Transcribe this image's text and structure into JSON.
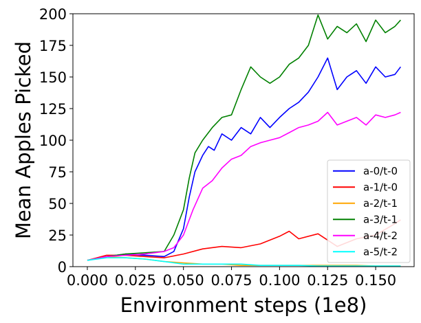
{
  "chart_data": {
    "type": "line",
    "title": "",
    "xlabel": "Environment steps (1e8)",
    "ylabel": "Mean Apples Picked",
    "xlim": [
      -0.0075,
      0.17
    ],
    "ylim": [
      0,
      200
    ],
    "xticks": [
      0.0,
      0.025,
      0.05,
      0.075,
      0.1,
      0.125,
      0.15
    ],
    "xtick_labels": [
      "0.000",
      "0.025",
      "0.050",
      "0.075",
      "0.100",
      "0.125",
      "0.150"
    ],
    "yticks": [
      0,
      25,
      50,
      75,
      100,
      125,
      150,
      175,
      200
    ],
    "ytick_labels": [
      "0",
      "25",
      "50",
      "75",
      "100",
      "125",
      "150",
      "175",
      "200"
    ],
    "grid": false,
    "legend_position": "lower-right",
    "series": [
      {
        "name": "a-0/t-0",
        "color": "#0000ff",
        "x": [
          0.0,
          0.01,
          0.02,
          0.03,
          0.04,
          0.045,
          0.05,
          0.053,
          0.056,
          0.06,
          0.063,
          0.066,
          0.07,
          0.075,
          0.08,
          0.085,
          0.09,
          0.095,
          0.1,
          0.105,
          0.11,
          0.115,
          0.12,
          0.125,
          0.13,
          0.135,
          0.14,
          0.145,
          0.15,
          0.155,
          0.16,
          0.163
        ],
        "y": [
          5,
          8,
          10,
          9,
          8,
          12,
          30,
          55,
          75,
          88,
          95,
          92,
          105,
          100,
          110,
          105,
          118,
          110,
          118,
          125,
          130,
          138,
          150,
          165,
          140,
          150,
          155,
          145,
          158,
          150,
          152,
          158
        ]
      },
      {
        "name": "a-1/t-0",
        "color": "#ff0000",
        "x": [
          0.0,
          0.01,
          0.02,
          0.03,
          0.04,
          0.05,
          0.06,
          0.07,
          0.08,
          0.09,
          0.1,
          0.105,
          0.11,
          0.12,
          0.13,
          0.14,
          0.15,
          0.16,
          0.163
        ],
        "y": [
          5,
          9,
          9,
          8,
          7,
          10,
          14,
          16,
          15,
          18,
          24,
          28,
          22,
          26,
          16,
          22,
          25,
          34,
          37
        ]
      },
      {
        "name": "a-2/t-1",
        "color": "#ffa500",
        "x": [
          0.0,
          0.01,
          0.02,
          0.03,
          0.04,
          0.05,
          0.06,
          0.07,
          0.08,
          0.09,
          0.1,
          0.11,
          0.12,
          0.13,
          0.14,
          0.15,
          0.163
        ],
        "y": [
          5,
          8,
          7,
          6,
          4,
          3,
          2,
          2,
          1,
          1,
          1,
          1,
          1,
          1,
          1,
          0.5,
          0.5
        ]
      },
      {
        "name": "a-3/t-1",
        "color": "#008000",
        "x": [
          0.0,
          0.01,
          0.02,
          0.03,
          0.04,
          0.045,
          0.05,
          0.053,
          0.056,
          0.06,
          0.065,
          0.07,
          0.075,
          0.08,
          0.085,
          0.09,
          0.095,
          0.1,
          0.105,
          0.11,
          0.115,
          0.12,
          0.125,
          0.13,
          0.135,
          0.14,
          0.145,
          0.15,
          0.155,
          0.16,
          0.163
        ],
        "y": [
          5,
          8,
          10,
          11,
          12,
          25,
          45,
          70,
          90,
          100,
          110,
          118,
          120,
          140,
          158,
          150,
          145,
          150,
          160,
          165,
          175,
          199,
          180,
          190,
          185,
          192,
          178,
          195,
          185,
          190,
          195
        ]
      },
      {
        "name": "a-4/t-2",
        "color": "#ff00ff",
        "x": [
          0.0,
          0.01,
          0.02,
          0.03,
          0.04,
          0.045,
          0.05,
          0.055,
          0.06,
          0.065,
          0.07,
          0.075,
          0.08,
          0.085,
          0.09,
          0.095,
          0.1,
          0.105,
          0.11,
          0.115,
          0.12,
          0.125,
          0.13,
          0.135,
          0.14,
          0.145,
          0.15,
          0.155,
          0.16,
          0.163
        ],
        "y": [
          5,
          8,
          9,
          10,
          12,
          15,
          25,
          45,
          62,
          68,
          78,
          85,
          88,
          95,
          98,
          100,
          102,
          106,
          110,
          112,
          115,
          122,
          112,
          115,
          118,
          112,
          120,
          118,
          120,
          122
        ]
      },
      {
        "name": "a-5/t-2",
        "color": "#00ffff",
        "x": [
          0.0,
          0.01,
          0.02,
          0.03,
          0.04,
          0.05,
          0.06,
          0.07,
          0.08,
          0.09,
          0.1,
          0.11,
          0.12,
          0.13,
          0.14,
          0.15,
          0.163
        ],
        "y": [
          5,
          7,
          7,
          6,
          4,
          2,
          2,
          2,
          2,
          1,
          1,
          1,
          0.5,
          0.5,
          0.5,
          0.5,
          0.5
        ]
      }
    ]
  }
}
